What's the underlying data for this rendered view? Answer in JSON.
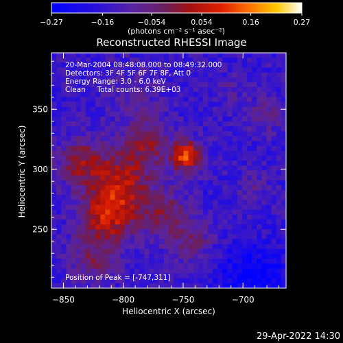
{
  "chart_data": {
    "type": "heatmap",
    "title": "Reconstructed RHESSI Image",
    "xlabel": "Heliocentric X (arcsec)",
    "ylabel": "Heliocentric Y (arcsec)",
    "xlim": [
      -860,
      -664
    ],
    "ylim": [
      201,
      397
    ],
    "x_ticks": [
      -850,
      -800,
      -750,
      -700
    ],
    "x_tick_labels": [
      "−850",
      "−800",
      "−750",
      "−700"
    ],
    "y_ticks": [
      250,
      300,
      350
    ],
    "y_tick_labels": [
      "250",
      "300",
      "350"
    ],
    "colorbar": {
      "min": -0.27,
      "max": 0.27,
      "ticks": [
        -0.27,
        -0.16,
        -0.054,
        0.054,
        0.16,
        0.27
      ],
      "tick_labels": [
        "−0.27",
        "−0.16",
        "−0.054",
        "0.054",
        "0.16",
        "0.27"
      ],
      "unit_label": "(photons cm⁻² s⁻¹ asec⁻²)"
    },
    "info_lines": [
      "20-Mar-2004 08:48:08.000 to 08:49:32.000",
      "Detectors: 3F 4F 5F 6F 7F 8F, Att 0",
      "Energy Range: 3.0 - 6.0 keV",
      "Clean     Total counts: 6.39E+03"
    ],
    "peak_label": "Position of Peak = [-747,311]",
    "peak": [
      -747,
      311
    ],
    "sources": [
      {
        "x": -747,
        "y": 311,
        "amp": 0.27,
        "sigma": 9
      },
      {
        "x": -812,
        "y": 262,
        "amp": 0.21,
        "sigma": 16
      },
      {
        "x": -800,
        "y": 292,
        "amp": 0.16,
        "sigma": 18
      },
      {
        "x": -835,
        "y": 305,
        "amp": 0.15,
        "sigma": 14
      },
      {
        "x": -780,
        "y": 322,
        "amp": 0.13,
        "sigma": 13
      },
      {
        "x": -765,
        "y": 262,
        "amp": 0.12,
        "sigma": 14
      },
      {
        "x": -742,
        "y": 240,
        "amp": 0.1,
        "sigma": 12
      },
      {
        "x": -825,
        "y": 225,
        "amp": 0.11,
        "sigma": 14
      },
      {
        "x": -790,
        "y": 360,
        "amp": 0.06,
        "sigma": 16
      },
      {
        "x": -680,
        "y": 345,
        "amp": 0.08,
        "sigma": 10
      },
      {
        "x": -690,
        "y": 285,
        "amp": 0.06,
        "sigma": 9
      },
      {
        "x": -710,
        "y": 365,
        "amp": 0.04,
        "sigma": 10
      }
    ],
    "background_level": -0.15,
    "minimum": {
      "x": -692,
      "y": 208,
      "amp": -0.12,
      "sigma": 20
    }
  },
  "footer": {
    "timestamp": "29-Apr-2022 14:30"
  }
}
